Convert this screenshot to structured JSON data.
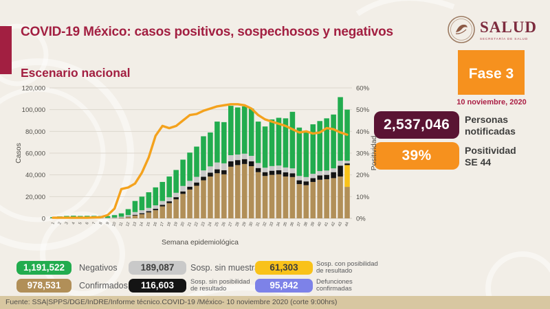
{
  "header": {
    "title": "COVID-19 México: casos positivos, sospechosos y negativos",
    "logo": {
      "name": "SALUD",
      "subtitle": "SECRETARÍA DE SALUD"
    }
  },
  "section_title": "Escenario nacional",
  "phase_badge": "Fase 3",
  "report_date": "10 noviembre, 2020",
  "stats": [
    {
      "value": "2,537,046",
      "label": "Personas\nnotificadas",
      "color": "#5A1433"
    },
    {
      "value": "39%",
      "label": "Positividad\nSE 44",
      "color": "#F6911E"
    }
  ],
  "legend": [
    {
      "value": "1,191,522",
      "label": "Negativos",
      "color": "#22AC4E",
      "text_color": "#FFFFFF",
      "lines": 1
    },
    {
      "value": "189,087",
      "label": "Sosp. sin muestra",
      "color": "#C9C9C9",
      "text_color": "#3E3E3D",
      "lines": 1
    },
    {
      "value": "61,303",
      "label": "Sosp. con posibilidad\nde resultado",
      "color": "#F9C21A",
      "text_color": "#3E3E3D",
      "lines": 2
    },
    {
      "value": "978,531",
      "label": "Confirmados",
      "color": "#B18F58",
      "text_color": "#FFFFFF",
      "lines": 1
    },
    {
      "value": "116,603",
      "label": "Sosp. sin posibilidad\nde resultado",
      "color": "#141414",
      "text_color": "#FFFFFF",
      "lines": 2
    },
    {
      "value": "95,842",
      "label": "Defunciones\nconfirmadas",
      "color": "#7D82E8",
      "text_color": "#FFFFFF",
      "lines": 2
    }
  ],
  "footer": "Fuente: SSA|SPPS/DGE/InDRE/Informe técnico.COVID-19 /México- 10 noviembre 2020 (corte 9:00hrs)",
  "chart_data": {
    "type": "bar",
    "stacked": true,
    "title": "Escenario nacional",
    "xlabel": "Semana epidemiológica",
    "ylabel_left": "Casos",
    "ylabel_right": "Positividad",
    "ylim_left": [
      0,
      120000
    ],
    "ylim_right_pct": [
      0,
      60
    ],
    "grid": true,
    "y_ticks_left": [
      "0",
      "20,000",
      "40,000",
      "60,000",
      "80,000",
      "100,000",
      "120,000"
    ],
    "y_ticks_right": [
      "0%",
      "10%",
      "20%",
      "30%",
      "40%",
      "50%",
      "60%"
    ],
    "x": [
      1,
      2,
      3,
      4,
      5,
      6,
      7,
      8,
      9,
      10,
      11,
      12,
      13,
      14,
      15,
      16,
      17,
      18,
      19,
      20,
      21,
      22,
      23,
      24,
      25,
      26,
      27,
      28,
      29,
      30,
      31,
      32,
      33,
      34,
      35,
      36,
      37,
      38,
      39,
      40,
      41,
      42,
      43,
      44
    ],
    "series": [
      {
        "name": "Confirmados",
        "color": "#B18F58",
        "values": [
          0,
          0,
          0,
          100,
          100,
          100,
          100,
          100,
          100,
          200,
          500,
          1200,
          2600,
          3800,
          5500,
          7500,
          11000,
          14000,
          17500,
          22500,
          26500,
          30000,
          35000,
          38500,
          41500,
          40500,
          47500,
          49000,
          50000,
          48000,
          42500,
          39000,
          40000,
          40500,
          38500,
          38000,
          31500,
          30500,
          33500,
          35500,
          36000,
          37000,
          38500,
          29000
        ]
      },
      {
        "name": "Sosp. con posibilidad de resultado",
        "color": "#F9C21A",
        "values": [
          0,
          0,
          0,
          0,
          0,
          0,
          0,
          0,
          0,
          0,
          0,
          0,
          0,
          0,
          0,
          0,
          0,
          0,
          0,
          0,
          0,
          0,
          0,
          0,
          0,
          0,
          0,
          0,
          0,
          0,
          0,
          0,
          0,
          0,
          0,
          0,
          0,
          0,
          0,
          0,
          0,
          0,
          0,
          20000
        ]
      },
      {
        "name": "Sosp. sin posibilidad de resultado",
        "color": "#141414",
        "values": [
          0,
          0,
          0,
          0,
          0,
          0,
          0,
          0,
          100,
          100,
          200,
          300,
          700,
          900,
          1100,
          1300,
          1500,
          1700,
          2000,
          2300,
          2600,
          3000,
          3300,
          3500,
          3600,
          3800,
          5000,
          4600,
          4500,
          4500,
          3800,
          3500,
          3800,
          3800,
          3800,
          3500,
          3500,
          3500,
          3500,
          4000,
          4000,
          5500,
          10000,
          1500
        ]
      },
      {
        "name": "Sosp. sin muestra",
        "color": "#C9C9C9",
        "values": [
          200,
          300,
          300,
          300,
          300,
          300,
          300,
          300,
          300,
          500,
          800,
          1500,
          2500,
          2800,
          3000,
          3200,
          3500,
          3700,
          4000,
          5000,
          5400,
          5200,
          5800,
          5800,
          6300,
          6300,
          5600,
          5100,
          5000,
          5000,
          4600,
          4100,
          4300,
          4300,
          4500,
          4500,
          4000,
          4000,
          4000,
          4000,
          4000,
          3500,
          4500,
          2500
        ]
      },
      {
        "name": "Negativos",
        "color": "#22AC4E",
        "values": [
          1000,
          1500,
          1900,
          2000,
          1800,
          1900,
          1900,
          1800,
          1600,
          2200,
          3100,
          5500,
          10200,
          12500,
          14400,
          16500,
          17500,
          19100,
          21000,
          24200,
          26000,
          27800,
          31400,
          31200,
          37600,
          37900,
          45400,
          43300,
          43500,
          43500,
          38100,
          37900,
          42900,
          43900,
          45200,
          52000,
          44500,
          42000,
          45500,
          46000,
          48000,
          49500,
          58500,
          47000
        ]
      }
    ],
    "line": {
      "name": "Positividad",
      "color": "#F4A21D",
      "values_pct": [
        0.3,
        0.3,
        0.3,
        0.3,
        0.3,
        0.3,
        0.4,
        0.5,
        1.5,
        4.5,
        13.5,
        14.2,
        16,
        21,
        28,
        38,
        42.5,
        41.5,
        42.5,
        45,
        47.5,
        48,
        49.5,
        50.5,
        51.5,
        52,
        52.5,
        52.5,
        52,
        50.5,
        47.5,
        45.5,
        44.5,
        43.5,
        42.5,
        41,
        39.5,
        40,
        39,
        39.5,
        41.5,
        41,
        39.5,
        38.5
      ]
    }
  },
  "colors": {
    "accent_maroon": "#A21F41",
    "dark_wine": "#5A1433",
    "orange": "#F6911E",
    "footer_band": "#D8C7A1",
    "background": "#F2EEE7"
  }
}
